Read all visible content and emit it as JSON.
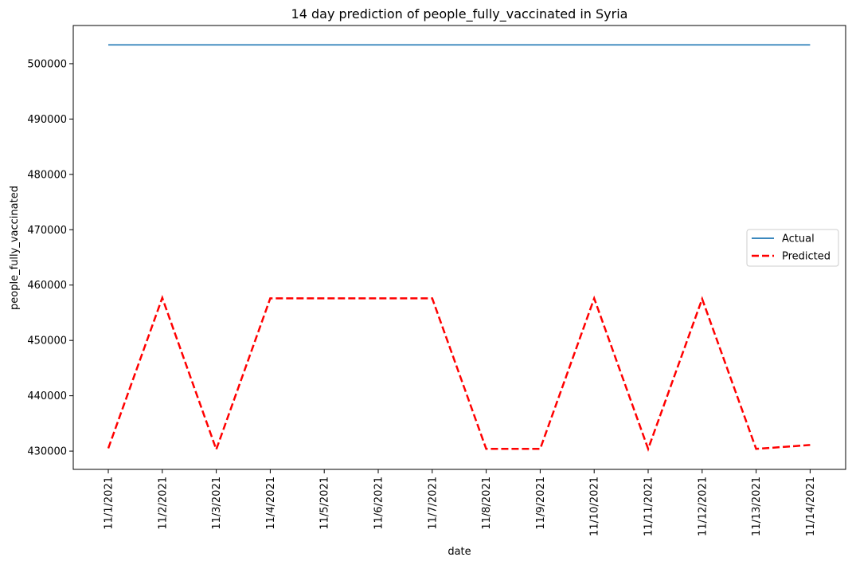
{
  "chart_data": {
    "type": "line",
    "title": "14 day prediction of people_fully_vaccinated in Syria",
    "xlabel": "date",
    "ylabel": "people_fully_vaccinated",
    "categories": [
      "11/1/2021",
      "11/2/2021",
      "11/3/2021",
      "11/4/2021",
      "11/5/2021",
      "11/6/2021",
      "11/7/2021",
      "11/8/2021",
      "11/9/2021",
      "11/10/2021",
      "11/11/2021",
      "11/12/2021",
      "11/13/2021",
      "11/14/2021"
    ],
    "yticks": [
      430000,
      440000,
      450000,
      460000,
      470000,
      480000,
      490000,
      500000
    ],
    "ylim": [
      426700,
      506900
    ],
    "series": [
      {
        "name": "Actual",
        "color": "#1f77b4",
        "dash": "solid",
        "values": [
          503400,
          503400,
          503400,
          503400,
          503400,
          503400,
          503400,
          503400,
          503400,
          503400,
          503400,
          503400,
          503400,
          503400
        ]
      },
      {
        "name": "Predicted",
        "color": "#ff0000",
        "dash": "dashed",
        "values": [
          430500,
          457700,
          430300,
          457600,
          457600,
          457600,
          457600,
          430400,
          430400,
          457600,
          430400,
          457500,
          430400,
          431100
        ]
      }
    ],
    "legend_position": "right",
    "grid": false
  }
}
